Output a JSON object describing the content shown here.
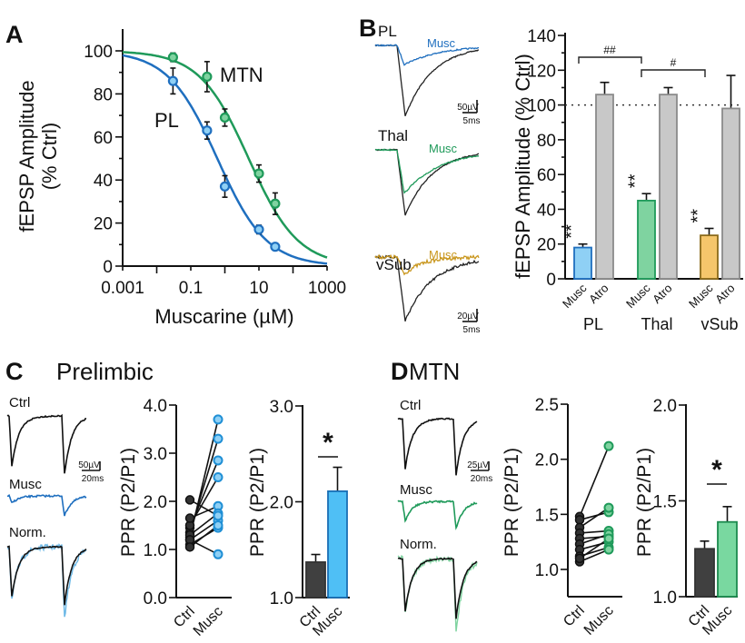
{
  "figure": {
    "panel_labels": [
      "A",
      "B",
      "C",
      "D"
    ],
    "titles": {
      "C": "Prelimbic",
      "D": "MTN"
    }
  },
  "colors": {
    "pl_stroke": "#1f6fbf",
    "pl_fill": "#8fd0f5",
    "mtn_stroke": "#1f9a5a",
    "mtn_fill": "#7fd3a0",
    "vsub_stroke": "#8a6a1a",
    "vsub_fill": "#f5c66b",
    "vsub_trace": "#c9971f",
    "atro_fill": "#c8c8c8",
    "atro_stroke": "#8a8a8a",
    "ctrl_fill": "#404040",
    "c_musc_fill": "#4fbff5",
    "c_musc_stroke": "#1a6fb5",
    "d_musc_fill": "#79d8a0",
    "d_musc_stroke": "#1c8a4e"
  },
  "chart_data": [
    {
      "panel": "A",
      "type": "line",
      "xlabel": "Muscarine (µM)",
      "ylabel": [
        "fEPSP Amplitude",
        "(% Ctrl)"
      ],
      "xscale": "log",
      "xlim": [
        0.001,
        1000
      ],
      "ylim": [
        0,
        100
      ],
      "xticks": [
        "0.001",
        "0.1",
        "10",
        "1000"
      ],
      "yticks": [
        "0",
        "20",
        "40",
        "60",
        "80",
        "100"
      ],
      "series": [
        {
          "name": "PL",
          "x": [
            0.03,
            0.3,
            1,
            10,
            30
          ],
          "y": [
            86,
            63,
            37,
            17,
            9
          ],
          "err": [
            6,
            4,
            5,
            2,
            1
          ],
          "fit": {
            "ic50": 0.6,
            "hill": 0.6
          }
        },
        {
          "name": "MTN",
          "x": [
            0.03,
            0.3,
            1,
            10,
            30
          ],
          "y": [
            97,
            88,
            69,
            43,
            29
          ],
          "err": [
            2,
            7,
            4,
            4,
            5
          ],
          "fit": {
            "ic50": 5,
            "hill": 0.6
          }
        }
      ]
    },
    {
      "panel": "B-traces",
      "type": "line",
      "traces": [
        {
          "label": "PL",
          "musc_label": "Musc",
          "scale_v": "50µV",
          "scale_t": "5ms"
        },
        {
          "label": "Thal",
          "musc_label": "Musc",
          "scale_v": "50µV",
          "scale_t": "5ms"
        },
        {
          "label": "vSub",
          "musc_label": "Musc",
          "scale_v": "20µV",
          "scale_t": "5ms"
        }
      ]
    },
    {
      "panel": "B",
      "type": "bar",
      "ylabel": "fEPSP Amplitude (% Ctrl)",
      "ylim": [
        0,
        140
      ],
      "yticks": [
        "0",
        "20",
        "40",
        "60",
        "80",
        "100",
        "120",
        "140"
      ],
      "reference_line": 100,
      "groups": [
        {
          "name": "PL",
          "bars": [
            {
              "label": "Musc",
              "value": 18,
              "err": 2,
              "sig": "**"
            },
            {
              "label": "Atro",
              "value": 106,
              "err": 7
            }
          ]
        },
        {
          "name": "Thal",
          "bars": [
            {
              "label": "Musc",
              "value": 45,
              "err": 4,
              "sig": "**"
            },
            {
              "label": "Atro",
              "value": 106,
              "err": 4
            }
          ]
        },
        {
          "name": "vSub",
          "bars": [
            {
              "label": "Musc",
              "value": 25,
              "err": 4,
              "sig": "**"
            },
            {
              "label": "Atro",
              "value": 98,
              "err": 19
            }
          ]
        }
      ],
      "comparisons": [
        {
          "label": "##",
          "from": "PL",
          "to": "Thal"
        },
        {
          "label": "#",
          "from": "Thal",
          "to": "vSub"
        }
      ]
    },
    {
      "panel": "C-traces",
      "type": "line",
      "labels": [
        "Ctrl",
        "Musc",
        "Norm."
      ],
      "scale_v": "50µV",
      "scale_t": "20ms"
    },
    {
      "panel": "C-scatter",
      "type": "scatter",
      "ylabel": "PPR (P2/P1)",
      "ylim": [
        0,
        4
      ],
      "yticks": [
        "0.0",
        "1.0",
        "2.0",
        "3.0",
        "4.0"
      ],
      "categories": [
        "Ctrl",
        "Musc"
      ],
      "pairs": [
        [
          1.25,
          3.7
        ],
        [
          1.35,
          3.3
        ],
        [
          1.45,
          2.85
        ],
        [
          1.5,
          2.5
        ],
        [
          1.65,
          1.9
        ],
        [
          1.3,
          1.75
        ],
        [
          1.2,
          1.6
        ],
        [
          1.1,
          1.45
        ],
        [
          1.2,
          0.9
        ],
        [
          2.03,
          1.7
        ],
        [
          1.05,
          1.5
        ]
      ]
    },
    {
      "panel": "C-bar",
      "type": "bar",
      "ylabel": "PPR (P2/P1)",
      "ylim": [
        1,
        3
      ],
      "yticks": [
        "1.0",
        "2.0",
        "3.0"
      ],
      "categories": [
        "Ctrl",
        "Musc"
      ],
      "values": [
        1.37,
        2.11
      ],
      "err": [
        0.08,
        0.25
      ],
      "sig": "*"
    },
    {
      "panel": "D-traces",
      "type": "line",
      "labels": [
        "Ctrl",
        "Musc",
        "Norm."
      ],
      "scale_v": "25µV",
      "scale_t": "20ms"
    },
    {
      "panel": "D-scatter",
      "type": "scatter",
      "ylabel": "PPR (P2/P1)",
      "ylim": [
        0.75,
        2.5
      ],
      "yticks": [
        "1.0",
        "1.5",
        "2.0",
        "2.5"
      ],
      "categories": [
        "Ctrl",
        "Musc"
      ],
      "pairs": [
        [
          1.48,
          2.12
        ],
        [
          1.45,
          1.52
        ],
        [
          1.38,
          1.56
        ],
        [
          1.33,
          1.35
        ],
        [
          1.28,
          1.3
        ],
        [
          1.23,
          1.32
        ],
        [
          1.18,
          1.25
        ],
        [
          1.12,
          1.2
        ],
        [
          1.07,
          1.18
        ],
        [
          1.1,
          1.28
        ]
      ]
    },
    {
      "panel": "D-bar",
      "type": "bar",
      "ylabel": "PPR (P2/P1)",
      "ylim": [
        1,
        2
      ],
      "yticks": [
        "1.0",
        "1.5",
        "2.0"
      ],
      "categories": [
        "Ctrl",
        "Musc"
      ],
      "values": [
        1.25,
        1.39
      ],
      "err": [
        0.04,
        0.08
      ],
      "sig": "*"
    }
  ]
}
